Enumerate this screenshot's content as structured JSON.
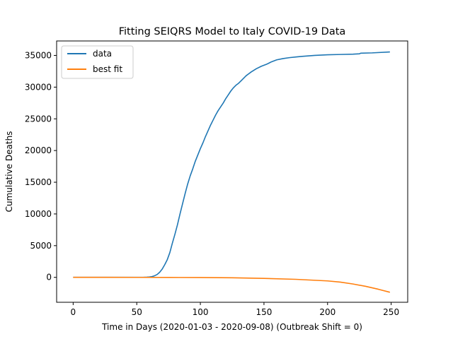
{
  "chart_data": {
    "type": "line",
    "title": "Fitting SEIQRS Model to Italy COVID-19 Data",
    "xlabel": "Time in Days (2020-01-03 - 2020-09-08) (Outbreak Shift = 0)",
    "ylabel": "Cumulative Deaths",
    "xlim": [
      -13,
      263
    ],
    "ylim": [
      -3930,
      37280
    ],
    "xticks": [
      0,
      50,
      100,
      150,
      200,
      250
    ],
    "yticks": [
      0,
      5000,
      10000,
      15000,
      20000,
      25000,
      30000,
      35000
    ],
    "legend_position": "top-left",
    "grid": false,
    "series": [
      {
        "name": "data",
        "color": "#1f77b4",
        "x": [
          0,
          50,
          55,
          58,
          60,
          62,
          64,
          66,
          68,
          70,
          72,
          74,
          76,
          78,
          80,
          82,
          84,
          86,
          88,
          90,
          92,
          94,
          96,
          98,
          100,
          102,
          104,
          106,
          108,
          110,
          112,
          114,
          116,
          118,
          120,
          122,
          124,
          126,
          128,
          130,
          132,
          134,
          136,
          138,
          140,
          144,
          148,
          152,
          156,
          160,
          165,
          170,
          175,
          180,
          190,
          200,
          210,
          220,
          225,
          226,
          235,
          249
        ],
        "y": [
          0,
          0,
          10,
          30,
          60,
          120,
          250,
          450,
          800,
          1300,
          2000,
          2800,
          3900,
          5400,
          6800,
          8300,
          10000,
          11600,
          13200,
          14700,
          16000,
          17100,
          18300,
          19300,
          20300,
          21200,
          22200,
          23100,
          24000,
          24800,
          25600,
          26300,
          26900,
          27500,
          28200,
          28800,
          29400,
          29900,
          30300,
          30600,
          31000,
          31400,
          31800,
          32100,
          32400,
          32900,
          33300,
          33600,
          34000,
          34300,
          34500,
          34650,
          34750,
          34850,
          35000,
          35100,
          35150,
          35200,
          35250,
          35350,
          35400,
          35550
        ]
      },
      {
        "name": "best fit",
        "color": "#ff7f0e",
        "x": [
          0,
          25,
          50,
          75,
          100,
          125,
          150,
          175,
          200,
          210,
          220,
          230,
          240,
          249
        ],
        "y": [
          0,
          0,
          -5,
          -10,
          -30,
          -70,
          -160,
          -310,
          -560,
          -750,
          -1050,
          -1420,
          -1880,
          -2350
        ]
      }
    ]
  }
}
